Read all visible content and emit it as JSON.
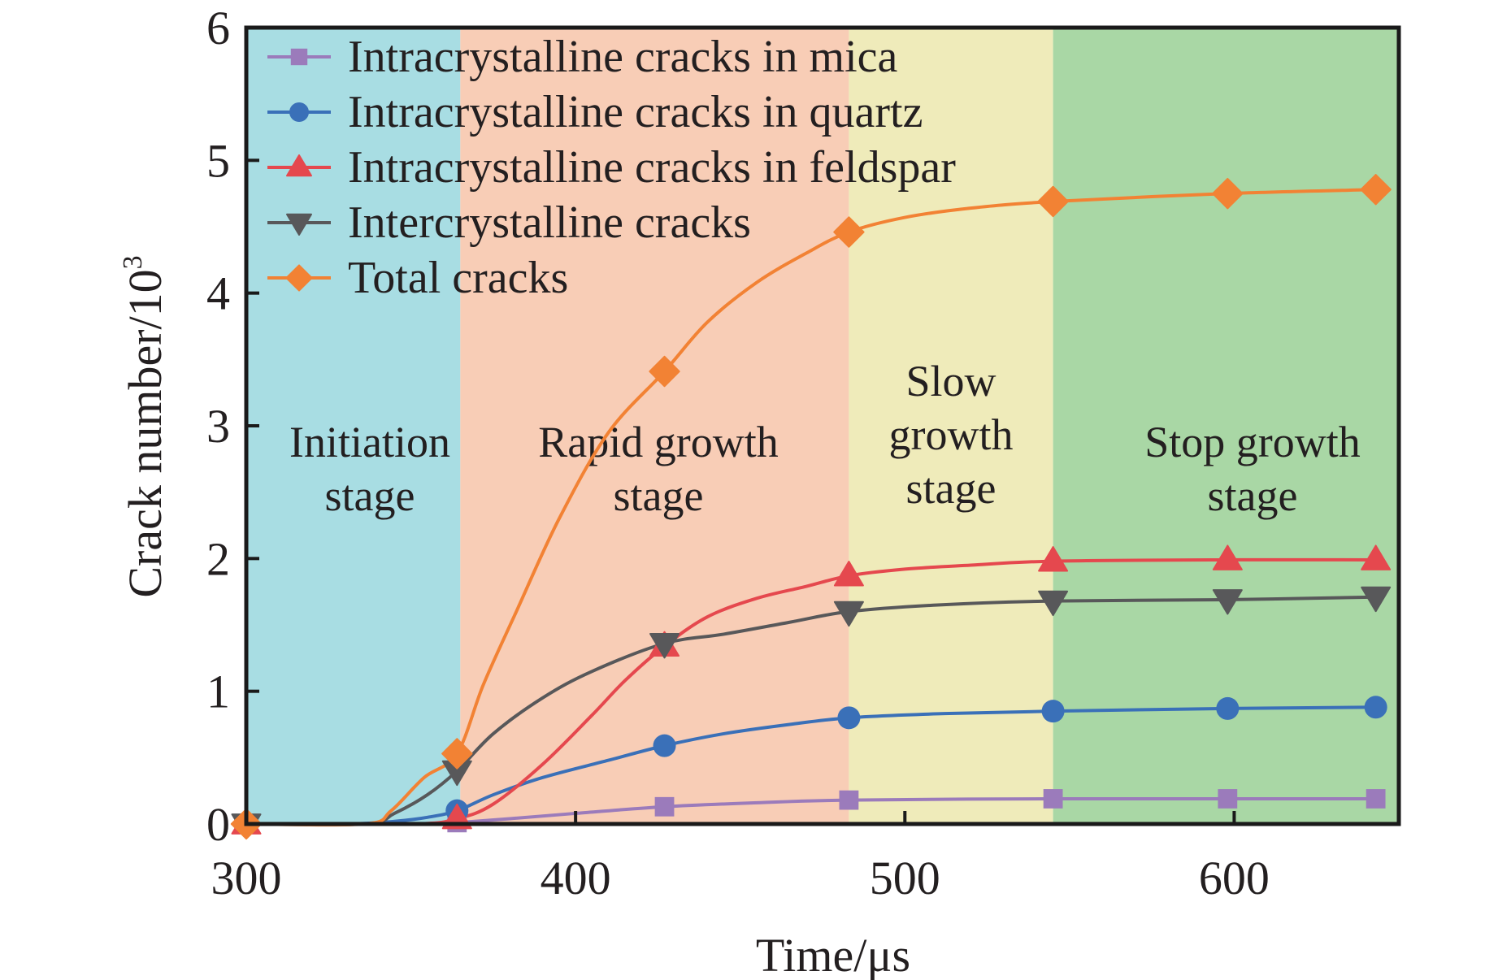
{
  "chart_data": {
    "type": "line",
    "title": "",
    "xlabel": "Time/μs",
    "ylabel_main": "Crack number/10",
    "ylabel_sup": "3",
    "xlim": [
      300,
      650
    ],
    "ylim": [
      0,
      6
    ],
    "xticks": [
      300,
      400,
      500,
      600
    ],
    "yticks": [
      0,
      1,
      2,
      3,
      4,
      5,
      6
    ],
    "xtick_labels": [
      "300",
      "400",
      "500",
      "600"
    ],
    "ytick_labels": [
      "0",
      "1",
      "2",
      "3",
      "4",
      "5",
      "6"
    ],
    "grid": false,
    "legend_position": "top-left",
    "stages": [
      {
        "name": "initiation",
        "line1": "Initiation",
        "line2": "stage",
        "line0": "",
        "range": [
          300,
          365
        ],
        "color": "#a8dde3"
      },
      {
        "name": "rapid-growth",
        "line1": "Rapid growth",
        "line2": "stage",
        "line0": "",
        "range": [
          365,
          483
        ],
        "color": "#f8cdb6"
      },
      {
        "name": "slow-growth",
        "line0": "Slow",
        "line1": "growth",
        "line2": "stage",
        "range": [
          483,
          545
        ],
        "color": "#efebba"
      },
      {
        "name": "stop-growth",
        "line1": "Stop growth",
        "line2": "stage",
        "line0": "",
        "range": [
          545,
          650
        ],
        "color": "#a9d7a5"
      }
    ],
    "series": [
      {
        "name": "Intracrystalline cracks in mica",
        "marker": "square",
        "color": "#9b7bbb",
        "x": [
          300,
          364,
          427,
          483,
          545,
          598,
          643
        ],
        "values": [
          0,
          0.01,
          0.13,
          0.18,
          0.19,
          0.19,
          0.19
        ],
        "curve_x": [
          300,
          355,
          364,
          380,
          400,
          427,
          455,
          483,
          545,
          598,
          643
        ],
        "curve_y": [
          0,
          0,
          0.01,
          0.04,
          0.08,
          0.13,
          0.16,
          0.18,
          0.19,
          0.19,
          0.19
        ]
      },
      {
        "name": "Intracrystalline cracks in quartz",
        "marker": "circle",
        "color": "#3a70b8",
        "x": [
          300,
          364,
          427,
          483,
          545,
          598,
          643
        ],
        "values": [
          0,
          0.1,
          0.59,
          0.8,
          0.85,
          0.87,
          0.88
        ],
        "curve_x": [
          300,
          330,
          345,
          355,
          364,
          375,
          390,
          410,
          427,
          445,
          465,
          483,
          510,
          545,
          598,
          643
        ],
        "curve_y": [
          0,
          0,
          0.02,
          0.05,
          0.1,
          0.22,
          0.35,
          0.48,
          0.59,
          0.68,
          0.75,
          0.8,
          0.83,
          0.85,
          0.87,
          0.88
        ]
      },
      {
        "name": "Intracrystalline cracks in feldspar",
        "marker": "triangle-up",
        "color": "#e5484e",
        "x": [
          300,
          364,
          427,
          483,
          545,
          598,
          643
        ],
        "values": [
          0,
          0.04,
          1.34,
          1.87,
          1.98,
          1.99,
          1.99
        ],
        "curve_x": [
          300,
          350,
          364,
          375,
          390,
          405,
          415,
          427,
          440,
          455,
          470,
          483,
          500,
          520,
          545,
          598,
          643
        ],
        "curve_y": [
          0,
          0,
          0.04,
          0.15,
          0.45,
          0.82,
          1.08,
          1.34,
          1.56,
          1.7,
          1.79,
          1.87,
          1.92,
          1.95,
          1.98,
          1.99,
          1.99
        ]
      },
      {
        "name": "Intercrystalline cracks",
        "marker": "triangle-down",
        "color": "#58585a",
        "x": [
          300,
          364,
          427,
          483,
          545,
          598,
          643
        ],
        "values": [
          0,
          0.4,
          1.36,
          1.6,
          1.68,
          1.69,
          1.71
        ],
        "curve_x": [
          300,
          336,
          345,
          355,
          364,
          375,
          390,
          405,
          427,
          445,
          465,
          483,
          510,
          545,
          598,
          643
        ],
        "curve_y": [
          0,
          0,
          0.08,
          0.22,
          0.4,
          0.68,
          0.95,
          1.15,
          1.36,
          1.43,
          1.52,
          1.6,
          1.65,
          1.68,
          1.69,
          1.71
        ]
      },
      {
        "name": "Total cracks",
        "marker": "diamond",
        "color": "#f28234",
        "x": [
          300,
          364,
          427,
          483,
          545,
          598,
          643
        ],
        "values": [
          0,
          0.53,
          3.41,
          4.46,
          4.69,
          4.75,
          4.78
        ],
        "curve_x": [
          300,
          336,
          344,
          354,
          364,
          372,
          382,
          395,
          410,
          427,
          440,
          455,
          470,
          483,
          500,
          520,
          545,
          598,
          643
        ],
        "curve_y": [
          0,
          0,
          0.1,
          0.35,
          0.53,
          1.05,
          1.6,
          2.3,
          2.95,
          3.41,
          3.78,
          4.08,
          4.3,
          4.46,
          4.57,
          4.64,
          4.69,
          4.75,
          4.78
        ]
      }
    ]
  }
}
